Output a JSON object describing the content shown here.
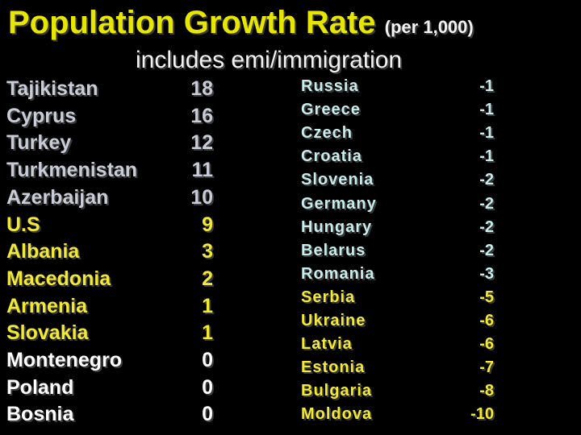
{
  "title": "Population Growth Rate",
  "title_note": "(per 1,000)",
  "subtitle": "includes emi/immigration",
  "colors": {
    "gray": "#c8ccd6",
    "cyan": "#c8ebeb",
    "yellow": "#f2e83a",
    "white": "#ffffff"
  },
  "left_list": [
    {
      "country": "Tajikistan",
      "rate": "18",
      "color": "gray"
    },
    {
      "country": "Cyprus",
      "rate": "16",
      "color": "gray"
    },
    {
      "country": "Turkey",
      "rate": "12",
      "color": "gray"
    },
    {
      "country": "Turkmenistan",
      "rate": "11",
      "color": "gray"
    },
    {
      "country": "Azerbaijan",
      "rate": "10",
      "color": "gray"
    },
    {
      "country": "U.S",
      "rate": "9",
      "color": "yellow"
    },
    {
      "country": "Albania",
      "rate": "3",
      "color": "yellow"
    },
    {
      "country": "Macedonia",
      "rate": "2",
      "color": "yellow"
    },
    {
      "country": "Armenia",
      "rate": "1",
      "color": "yellow"
    },
    {
      "country": "Slovakia",
      "rate": "1",
      "color": "yellow"
    },
    {
      "country": "Montenegro",
      "rate": "0",
      "color": "white"
    },
    {
      "country": "Poland",
      "rate": "0",
      "color": "white"
    },
    {
      "country": "Bosnia",
      "rate": "0",
      "color": "white"
    }
  ],
  "right_list": [
    {
      "country": "Russia",
      "rate": "-1",
      "color": "cyan"
    },
    {
      "country": "Greece",
      "rate": "-1",
      "color": "cyan"
    },
    {
      "country": "Czech",
      "rate": "-1",
      "color": "cyan"
    },
    {
      "country": "Croatia",
      "rate": "-1",
      "color": "cyan"
    },
    {
      "country": "Slovenia",
      "rate": "-2",
      "color": "cyan"
    },
    {
      "country": "Germany",
      "rate": "-2",
      "color": "cyan"
    },
    {
      "country": "Hungary",
      "rate": "-2",
      "color": "cyan"
    },
    {
      "country": "Belarus",
      "rate": "-2",
      "color": "cyan"
    },
    {
      "country": "Romania",
      "rate": "-3",
      "color": "cyan"
    },
    {
      "country": "Serbia",
      "rate": "-5",
      "color": "yellow"
    },
    {
      "country": "Ukraine",
      "rate": "-6",
      "color": "yellow"
    },
    {
      "country": "Latvia",
      "rate": "-6",
      "color": "yellow"
    },
    {
      "country": "Estonia",
      "rate": "-7",
      "color": "yellow"
    },
    {
      "country": "Bulgaria",
      "rate": "-8",
      "color": "yellow"
    },
    {
      "country": "Moldova",
      "rate": "-10",
      "color": "yellow"
    }
  ]
}
